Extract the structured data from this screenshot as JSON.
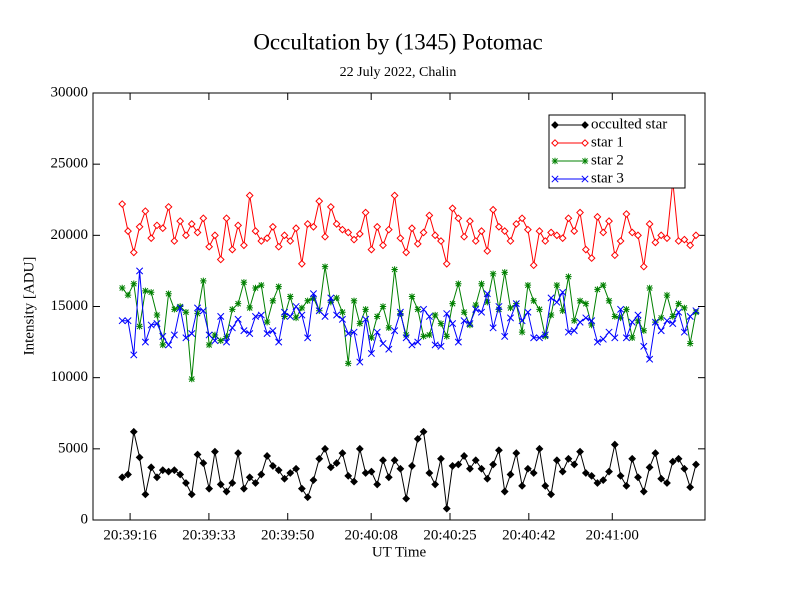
{
  "chart_data": {
    "type": "line",
    "title": "Occultation by (1345) Potomac",
    "subtitle": "22 July 2022, Chalin",
    "x_label": "UT Time",
    "y_label": "Intensity [ADU]",
    "x": [
      75554.3,
      75555.55,
      75556.8,
      75558.05,
      75559.3,
      75560.55,
      75561.8,
      75563.05,
      75564.3,
      75565.55,
      75566.8,
      75568.05,
      75569.3,
      75570.55,
      75571.8,
      75573.05,
      75574.3,
      75575.55,
      75576.8,
      75578.05,
      75579.3,
      75580.55,
      75581.8,
      75583.05,
      75584.3,
      75585.55,
      75586.8,
      75588.05,
      75589.3,
      75590.55,
      75591.8,
      75593.05,
      75594.3,
      75595.55,
      75596.8,
      75598.05,
      75599.3,
      75600.55,
      75601.8,
      75603.05,
      75604.3,
      75605.55,
      75606.8,
      75608.05,
      75609.3,
      75610.55,
      75611.8,
      75613.05,
      75614.3,
      75615.55,
      75616.8,
      75618.05,
      75619.3,
      75620.55,
      75621.8,
      75623.05,
      75624.3,
      75625.55,
      75626.8,
      75628.05,
      75629.3,
      75630.55,
      75631.8,
      75633.05,
      75634.3,
      75635.55,
      75636.8,
      75638.05,
      75639.3,
      75640.55,
      75641.8,
      75643.05,
      75644.3,
      75645.55,
      75646.8,
      75648.05,
      75649.3,
      75650.55,
      75651.8,
      75653.05,
      75654.3,
      75655.55,
      75656.8,
      75658.05,
      75659.3,
      75660.55,
      75661.8,
      75663.05,
      75664.3,
      75665.55,
      75666.8,
      75668.05,
      75669.3,
      75670.55,
      75671.8,
      75673.05,
      75674.3,
      75675.55,
      75676.8,
      75678.05
    ],
    "series": [
      {
        "name": "occulted star",
        "color": "#000000",
        "marker": "filled-diamond",
        "values": [
          3000,
          3200,
          6200,
          4400,
          1800,
          3700,
          3000,
          3500,
          3400,
          3500,
          3200,
          2600,
          1800,
          4600,
          4000,
          2200,
          4800,
          2500,
          2000,
          2600,
          4700,
          2200,
          3000,
          2600,
          3200,
          4500,
          3800,
          3500,
          2900,
          3300,
          3600,
          2200,
          1600,
          2800,
          4300,
          5000,
          3700,
          4000,
          4700,
          3100,
          2700,
          5000,
          3300,
          3400,
          2500,
          4200,
          3000,
          4200,
          3600,
          1500,
          3800,
          5700,
          6200,
          3300,
          2500,
          4300,
          800,
          3800,
          3900,
          4500,
          3600,
          4200,
          3600,
          2900,
          3900,
          4900,
          2000,
          3200,
          4700,
          2400,
          3600,
          3300,
          5000,
          2400,
          1800,
          4200,
          3400,
          4300,
          3900,
          4800,
          3300,
          3100,
          2600,
          2800,
          3400,
          5300,
          3100,
          2400,
          4300,
          3000,
          2000,
          3700,
          4700,
          2900,
          2600,
          4100,
          4300,
          3600,
          2300,
          3900
        ]
      },
      {
        "name": "star 1",
        "color": "#ff0000",
        "marker": "diamond",
        "values": [
          22200,
          20300,
          18800,
          20600,
          21700,
          19800,
          20700,
          20500,
          22000,
          19600,
          21000,
          20000,
          20800,
          20200,
          21200,
          19200,
          20000,
          18300,
          21200,
          19000,
          20700,
          19300,
          22800,
          20300,
          19600,
          19800,
          20600,
          19200,
          20000,
          19600,
          20500,
          18000,
          20800,
          20600,
          22400,
          19900,
          22000,
          20800,
          20400,
          20200,
          19700,
          20100,
          21600,
          19000,
          20600,
          19300,
          20400,
          22800,
          19800,
          18800,
          20500,
          19400,
          20200,
          21400,
          20000,
          19600,
          18000,
          21900,
          21200,
          19900,
          21000,
          19600,
          20300,
          18900,
          21800,
          20600,
          20300,
          19600,
          20800,
          21200,
          20400,
          17900,
          20300,
          19600,
          20200,
          20000,
          19800,
          21200,
          20300,
          21600,
          19000,
          18400,
          21300,
          20200,
          21000,
          18600,
          19600,
          21500,
          20200,
          20000,
          17800,
          20800,
          19500,
          20000,
          19800,
          23800,
          19600,
          19700,
          19300,
          20000
        ]
      },
      {
        "name": "star 2",
        "color": "#008000",
        "marker": "asterisk",
        "values": [
          16300,
          15800,
          16600,
          13600,
          16100,
          16000,
          14400,
          12300,
          15900,
          14800,
          15000,
          14600,
          9900,
          14500,
          16800,
          12300,
          13000,
          12600,
          12900,
          14800,
          15200,
          16700,
          14900,
          16300,
          16500,
          13900,
          15400,
          16400,
          14300,
          15700,
          14200,
          14900,
          15400,
          15600,
          14700,
          17800,
          15300,
          15600,
          14600,
          11000,
          15400,
          13800,
          14800,
          12800,
          14300,
          15000,
          13500,
          17600,
          14500,
          13000,
          15700,
          14800,
          12900,
          13000,
          14400,
          13800,
          12900,
          15200,
          16600,
          14600,
          13700,
          15100,
          16600,
          15300,
          17300,
          14800,
          17400,
          14900,
          15200,
          13200,
          16500,
          15400,
          14800,
          12900,
          14400,
          16500,
          14700,
          17100,
          14000,
          15400,
          15200,
          13700,
          16200,
          16500,
          15400,
          14300,
          14200,
          14800,
          12800,
          14000,
          13300,
          16300,
          13900,
          14200,
          15800,
          14300,
          15200,
          14900,
          12400,
          14600
        ]
      },
      {
        "name": "star 3",
        "color": "#0000ff",
        "marker": "cross",
        "values": [
          14000,
          14000,
          11600,
          17500,
          12500,
          13700,
          13800,
          12900,
          12300,
          13000,
          14900,
          12800,
          13100,
          14900,
          14700,
          13000,
          12600,
          14300,
          12500,
          13500,
          14100,
          13300,
          13100,
          14300,
          14400,
          13100,
          13300,
          12500,
          14600,
          14300,
          15000,
          14400,
          12800,
          15900,
          14700,
          14300,
          15600,
          14400,
          14100,
          13100,
          13200,
          11100,
          14100,
          11700,
          13200,
          12400,
          12000,
          13300,
          14600,
          12800,
          12300,
          12500,
          14800,
          14300,
          12300,
          12200,
          14500,
          13800,
          12500,
          14000,
          13800,
          14800,
          14600,
          15900,
          13500,
          15000,
          12900,
          14200,
          15200,
          14000,
          14600,
          12800,
          12800,
          13000,
          15600,
          15300,
          16000,
          13200,
          13300,
          13900,
          14200,
          14000,
          12500,
          12700,
          13200,
          12800,
          14800,
          12800,
          13900,
          14400,
          12200,
          11300,
          13900,
          13300,
          14000,
          13800,
          14600,
          13200,
          14300,
          14700
        ]
      }
    ],
    "xlim": [
      75548,
      75680
    ],
    "xticks": [
      {
        "value": 75556,
        "label": "20:39:16"
      },
      {
        "value": 75573,
        "label": "20:39:33"
      },
      {
        "value": 75590,
        "label": "20:39:50"
      },
      {
        "value": 75608,
        "label": "20:40:08"
      },
      {
        "value": 75625,
        "label": "20:40:25"
      },
      {
        "value": 75642,
        "label": "20:40:42"
      },
      {
        "value": 75660,
        "label": "20:41:00"
      }
    ],
    "ylim": [
      0,
      30000
    ],
    "yticks": [
      0,
      5000,
      10000,
      15000,
      20000,
      25000,
      30000
    ],
    "legend": "upper right"
  }
}
